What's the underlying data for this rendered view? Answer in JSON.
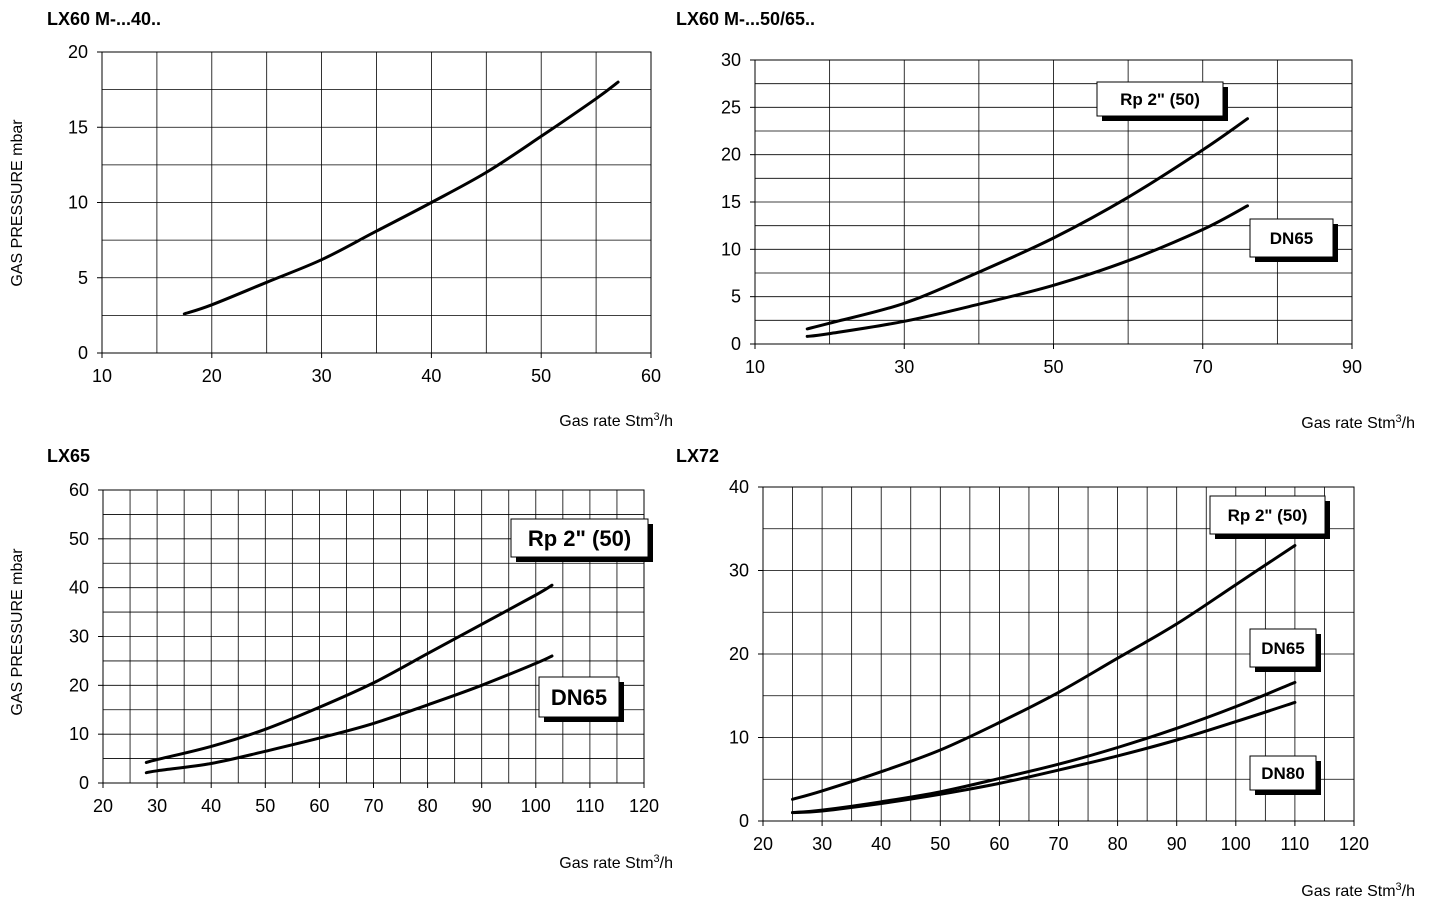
{
  "ylabel_text": "GAS PRESSURE mbar",
  "xlabel_prefix": "Gas rate  Stm",
  "xlabel_sup": "3",
  "xlabel_suffix": "/h",
  "chart_data": [
    {
      "type": "line",
      "title": "LX60 M-...40..",
      "xlabel": "Gas rate  Stm³/h",
      "ylabel": "GAS PRESSURE mbar",
      "xlim": [
        10,
        60
      ],
      "ylim": [
        0,
        20
      ],
      "xticks": [
        10,
        20,
        30,
        40,
        50,
        60
      ],
      "yticks": [
        0,
        5,
        10,
        15,
        20
      ],
      "grid": true,
      "series": [
        {
          "name": "",
          "x": [
            17.5,
            20,
            25,
            30,
            35,
            40,
            45,
            50,
            55,
            57
          ],
          "y": [
            2.6,
            3.2,
            4.7,
            6.2,
            8.1,
            10.0,
            12.0,
            14.4,
            16.9,
            18.0
          ]
        }
      ]
    },
    {
      "type": "line",
      "title": "LX60 M-...50/65..",
      "xlabel": "Gas rate  Stm³/h",
      "xlim": [
        10,
        90
      ],
      "ylim": [
        0,
        30
      ],
      "xticks": [
        10,
        30,
        50,
        70,
        90
      ],
      "yticks": [
        0,
        5,
        10,
        15,
        20,
        25,
        30
      ],
      "grid": true,
      "series": [
        {
          "name": "Rp 2\" (50)",
          "x": [
            17,
            20,
            30,
            40,
            50,
            60,
            70,
            76
          ],
          "y": [
            1.6,
            2.2,
            4.3,
            7.6,
            11.2,
            15.5,
            20.5,
            23.8
          ]
        },
        {
          "name": "DN65",
          "x": [
            17,
            20,
            30,
            40,
            50,
            60,
            70,
            76
          ],
          "y": [
            0.8,
            1.1,
            2.4,
            4.2,
            6.2,
            8.8,
            12.1,
            14.6
          ]
        }
      ]
    },
    {
      "type": "line",
      "title": "LX65",
      "xlabel": "Gas rate  Stm³/h",
      "ylabel": "GAS PRESSURE mbar",
      "xlim": [
        20,
        120
      ],
      "ylim": [
        0,
        60
      ],
      "xticks": [
        20,
        30,
        40,
        50,
        60,
        70,
        80,
        90,
        100,
        110,
        120
      ],
      "yticks": [
        0,
        10,
        20,
        30,
        40,
        50,
        60
      ],
      "grid": true,
      "series": [
        {
          "name": "Rp 2\" (50)",
          "x": [
            28,
            30,
            40,
            50,
            60,
            70,
            80,
            90,
            100,
            103
          ],
          "y": [
            4.2,
            4.8,
            7.5,
            11,
            15.5,
            20.5,
            26.5,
            32.5,
            38.5,
            40.5
          ]
        },
        {
          "name": "DN65",
          "x": [
            28,
            30,
            40,
            50,
            60,
            70,
            80,
            90,
            100,
            103
          ],
          "y": [
            2.1,
            2.5,
            4.0,
            6.5,
            9.2,
            12.2,
            16.0,
            20.0,
            24.5,
            26.0
          ]
        }
      ]
    },
    {
      "type": "line",
      "title": "LX72",
      "xlabel": "Gas rate  Stm³/h",
      "xlim": [
        20,
        120
      ],
      "ylim": [
        0,
        40
      ],
      "xticks": [
        20,
        30,
        40,
        50,
        60,
        70,
        80,
        90,
        100,
        110,
        120
      ],
      "yticks": [
        0,
        10,
        20,
        30,
        40
      ],
      "grid": true,
      "series": [
        {
          "name": "Rp 2\" (50)",
          "x": [
            25,
            30,
            40,
            50,
            60,
            70,
            80,
            90,
            100,
            110
          ],
          "y": [
            2.6,
            3.6,
            5.9,
            8.5,
            11.8,
            15.4,
            19.5,
            23.6,
            28.3,
            33.0
          ]
        },
        {
          "name": "DN65",
          "x": [
            25,
            30,
            40,
            50,
            60,
            70,
            80,
            90,
            100,
            110
          ],
          "y": [
            1.0,
            1.3,
            2.3,
            3.5,
            5.1,
            6.8,
            8.8,
            11.1,
            13.7,
            16.6
          ]
        },
        {
          "name": "DN80",
          "x": [
            25,
            30,
            40,
            50,
            60,
            70,
            80,
            90,
            100,
            110
          ],
          "y": [
            1.0,
            1.2,
            2.1,
            3.2,
            4.5,
            6.1,
            7.8,
            9.7,
            11.9,
            14.2
          ]
        }
      ]
    }
  ]
}
